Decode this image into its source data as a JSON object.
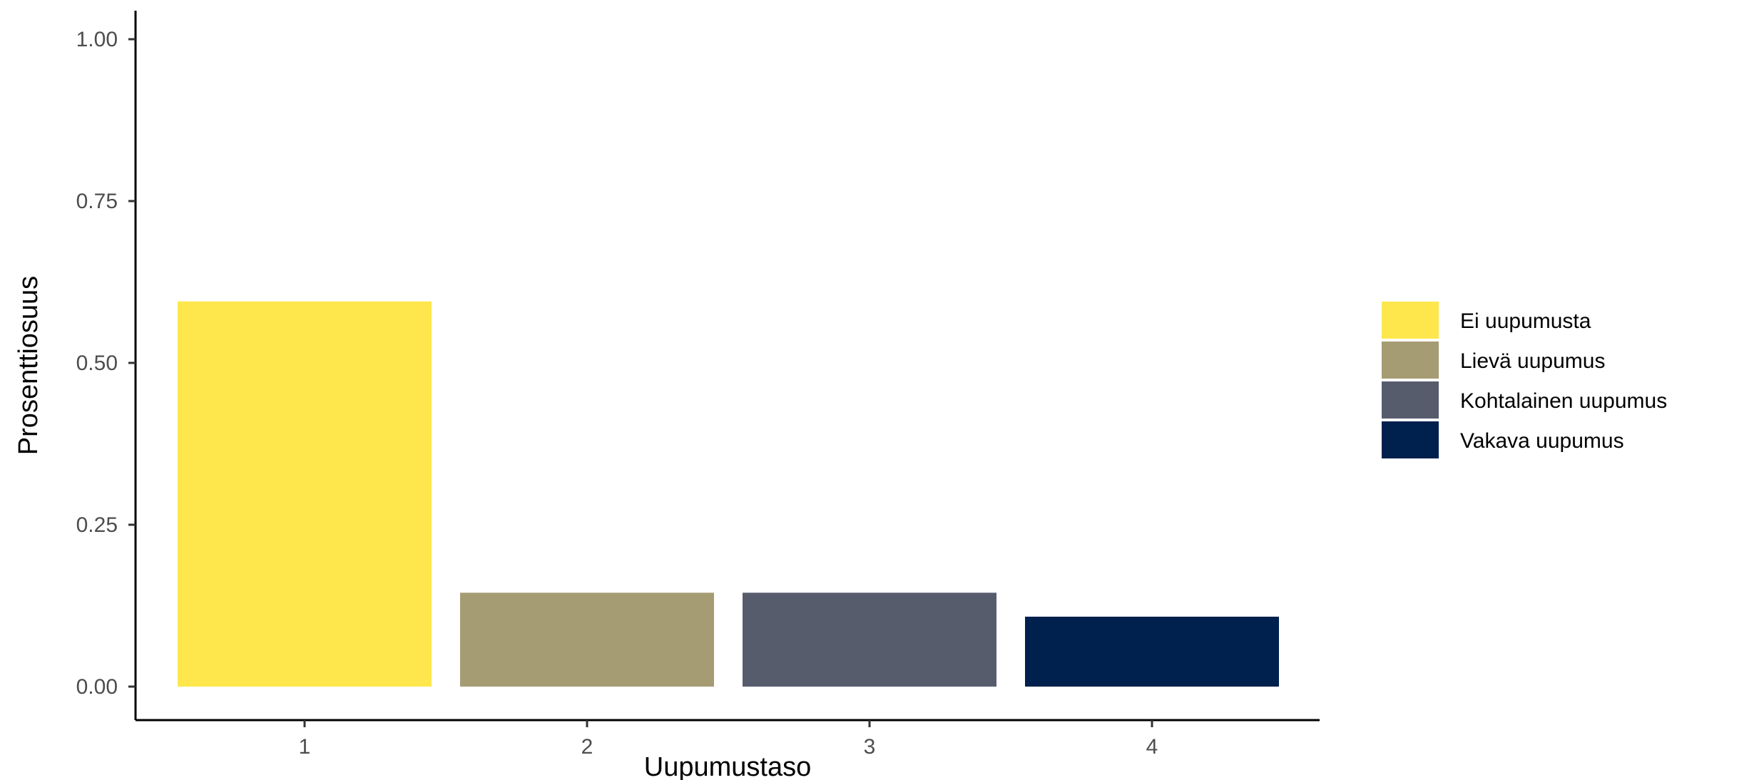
{
  "chart_data": {
    "type": "bar",
    "categories": [
      "1",
      "2",
      "3",
      "4"
    ],
    "values": [
      0.595,
      0.145,
      0.145,
      0.108
    ],
    "colors": [
      "#FDE74C",
      "#A59C74",
      "#575C6D",
      "#00204D"
    ],
    "xlabel": "Uupumustaso",
    "ylabel": "Prosenttiosuus",
    "ylim": [
      0,
      1
    ],
    "yticks": [
      "0.00",
      "0.25",
      "0.50",
      "0.75",
      "1.00"
    ],
    "ytick_values": [
      0,
      0.25,
      0.5,
      0.75,
      1.0
    ],
    "grid": false,
    "legend": {
      "position": "right",
      "entries": [
        {
          "label": "Ei uupumusta",
          "color": "#FDE74C"
        },
        {
          "label": "Lievä uupumus",
          "color": "#A59C74"
        },
        {
          "label": "Kohtalainen uupumus",
          "color": "#575C6D"
        },
        {
          "label": "Vakava uupumus",
          "color": "#00204D"
        }
      ]
    }
  }
}
